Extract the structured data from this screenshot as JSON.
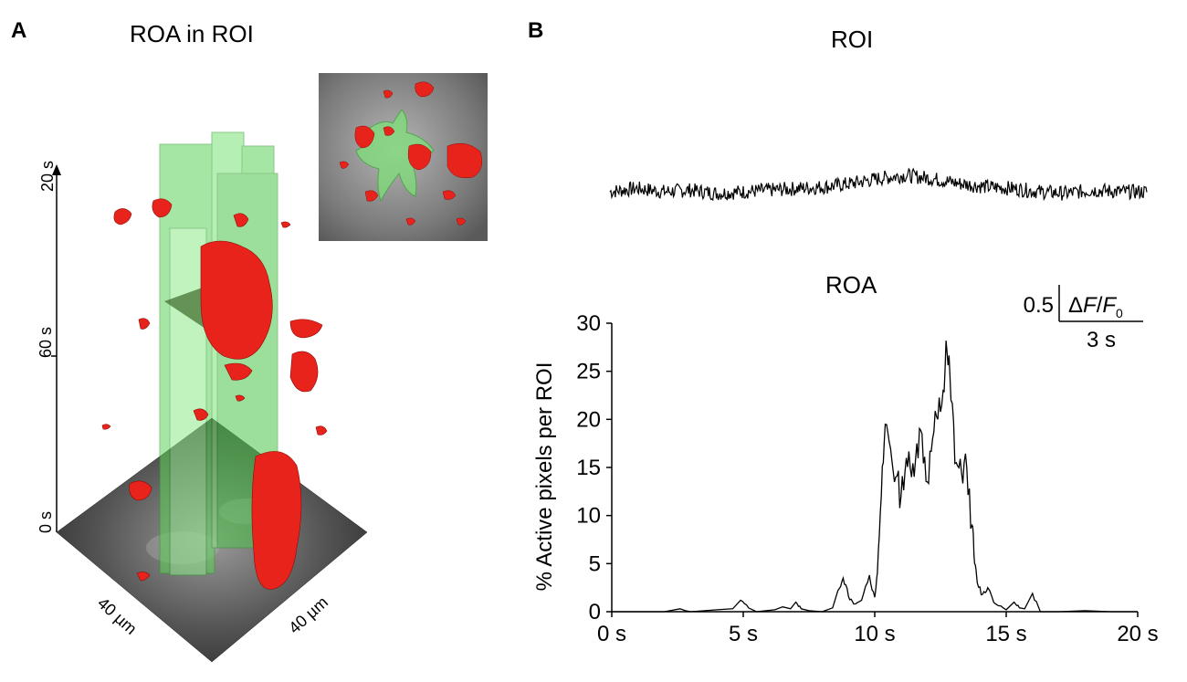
{
  "figure": {
    "panel_a": {
      "letter": "A",
      "title": "ROA in ROI",
      "time_axis_ticks": [
        "20 s",
        "60 s",
        "0 s"
      ],
      "dim_labels": [
        "40 µm",
        "40 µm"
      ],
      "colors": {
        "roi": "#7fe07a",
        "roa": "#e8231c",
        "background": "#6a6a6a"
      }
    },
    "panel_b": {
      "letter": "B",
      "trace_title": "ROI",
      "roa_title": "ROA",
      "scalebar": {
        "value": "0.5",
        "unit_delta": "Δ",
        "unit_f": "F",
        "unit_sep": "/",
        "unit_f0": "F",
        "unit_sub": "0",
        "time": "3 s"
      }
    }
  },
  "chart_data": [
    {
      "type": "line",
      "title": "ROI",
      "description_of_series": "dF/F0 trace (noisy, roughly flat with slight rise near 10-12 s)",
      "x": [
        0,
        1,
        2,
        3,
        4,
        5,
        6,
        7,
        8,
        9,
        10,
        11,
        12,
        13,
        14,
        15,
        16,
        17,
        18,
        19,
        20
      ],
      "y": [
        0.0,
        0.02,
        0.0,
        0.01,
        -0.01,
        0.0,
        0.01,
        0.02,
        0.03,
        0.05,
        0.08,
        0.1,
        0.08,
        0.05,
        0.03,
        0.02,
        0.0,
        -0.01,
        0.01,
        0.0,
        0.0
      ]
    },
    {
      "type": "line",
      "title": "ROA",
      "ylabel": "% Active pixels per ROI",
      "xlabel": "",
      "ylim": [
        0,
        30
      ],
      "yticks": [
        0,
        5,
        10,
        15,
        20,
        25,
        30
      ],
      "xlim": [
        0,
        20
      ],
      "xticks": [
        "0 s",
        "5 s",
        "10 s",
        "15 s",
        "20 s"
      ],
      "x": [
        0,
        1,
        2,
        2.6,
        2.8,
        3,
        4,
        4.6,
        4.9,
        5.2,
        5.5,
        6.2,
        6.5,
        6.8,
        7.0,
        7.2,
        7.5,
        8.0,
        8.4,
        8.6,
        8.8,
        9.0,
        9.2,
        9.5,
        9.8,
        10.0,
        10.1,
        10.25,
        10.4,
        10.6,
        10.8,
        11.0,
        11.2,
        11.4,
        11.6,
        11.8,
        12.0,
        12.2,
        12.4,
        12.6,
        12.75,
        12.9,
        13.1,
        13.3,
        13.5,
        13.7,
        13.8,
        13.9,
        14.1,
        14.3,
        14.6,
        15.0,
        15.3,
        15.5,
        15.7,
        16.0,
        16.3,
        17.0,
        18.0,
        19.0,
        20.0
      ],
      "y": [
        0,
        0,
        0,
        0.3,
        0.1,
        0,
        0.2,
        0.3,
        1.2,
        0.4,
        0,
        0.2,
        0.5,
        0.3,
        1.0,
        0.3,
        0.1,
        0,
        0.4,
        2.2,
        3.5,
        1.6,
        0.8,
        1.2,
        3.8,
        1.5,
        4.0,
        12.0,
        19.5,
        17.0,
        14.0,
        12.0,
        16.0,
        14.0,
        17.5,
        18.5,
        13.5,
        18.0,
        20.0,
        23.0,
        27.0,
        22.0,
        15.5,
        14.5,
        15.0,
        9.0,
        5.0,
        3.0,
        1.8,
        2.5,
        0.8,
        0.2,
        1.0,
        0.4,
        0.3,
        1.9,
        0,
        0,
        0.1,
        0,
        0
      ]
    }
  ]
}
